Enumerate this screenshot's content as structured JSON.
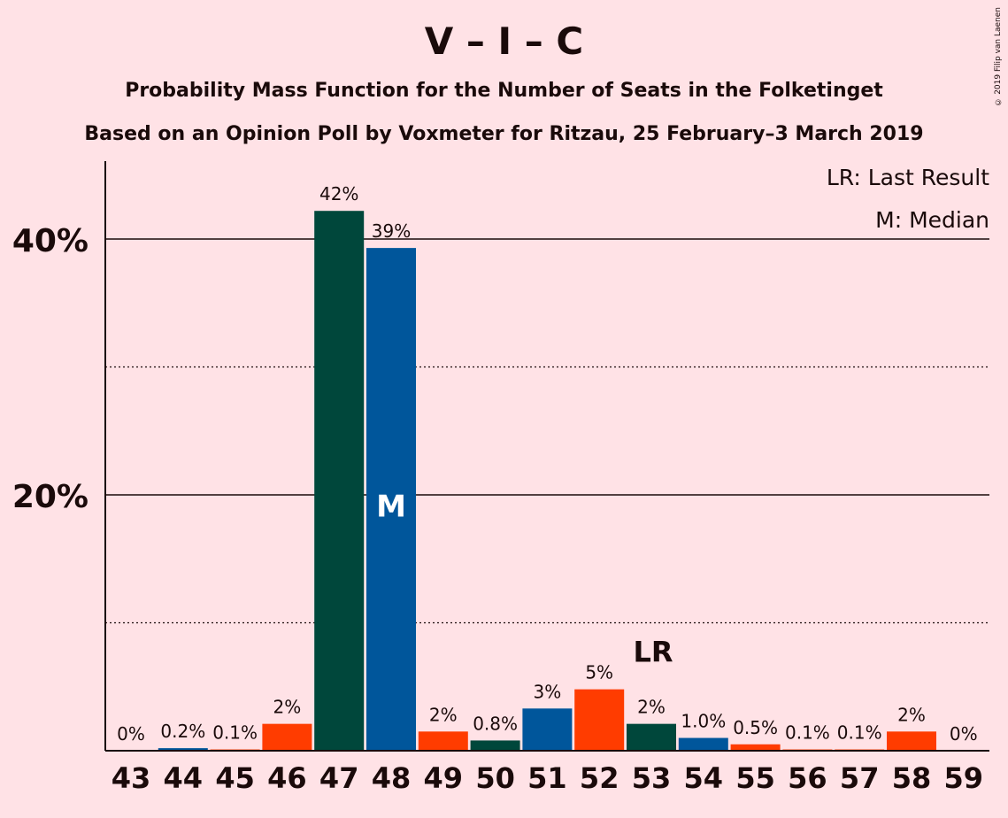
{
  "title": "V – I – C",
  "subtitle": "Probability Mass Function for the Number of Seats in the Folketinget",
  "subtitle2": "Based on an Opinion Poll by Voxmeter for Ritzau, 25 February–3 March 2019",
  "copyright": "© 2019 Filip van Laenen",
  "legend": {
    "lr": "LR: Last Result",
    "m": "M: Median"
  },
  "colors": {
    "background": "#FFE2E6",
    "V": "#00473B",
    "I": "#00569B",
    "C": "#FF3C00"
  },
  "chart_data": {
    "type": "bar",
    "categories": [
      "43",
      "44",
      "45",
      "46",
      "47",
      "48",
      "49",
      "50",
      "51",
      "52",
      "53",
      "54",
      "55",
      "56",
      "57",
      "58",
      "59"
    ],
    "values": [
      0,
      0.2,
      0.1,
      2.1,
      42.2,
      39.3,
      1.5,
      0.8,
      3.3,
      4.8,
      2.1,
      1.0,
      0.5,
      0.1,
      0.1,
      1.5,
      0
    ],
    "labels": [
      "0%",
      "0.2%",
      "0.1%",
      "2%",
      "42%",
      "39%",
      "2%",
      "0.8%",
      "3%",
      "5%",
      "2%",
      "1.0%",
      "0.5%",
      "0.1%",
      "0.1%",
      "2%",
      "0%"
    ],
    "colors": [
      "C",
      "I",
      "C",
      "C",
      "V",
      "I",
      "C",
      "V",
      "I",
      "C",
      "V",
      "I",
      "C",
      "C",
      "C",
      "C",
      "C"
    ],
    "ylim": [
      0,
      46
    ],
    "yticks": [
      {
        "value": 20,
        "label": "20%"
      },
      {
        "value": 40,
        "label": "40%"
      }
    ],
    "minor_gridlines": [
      10,
      30
    ],
    "median_seat": "48",
    "median_marker": "M",
    "last_result_seat": "53",
    "last_result_marker": "LR"
  }
}
